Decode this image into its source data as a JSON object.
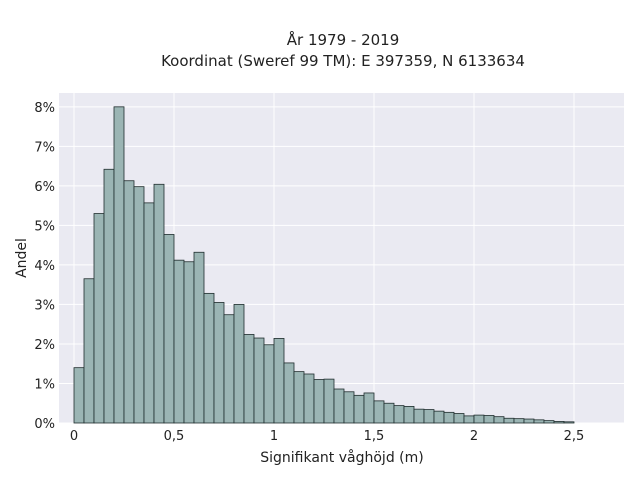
{
  "chart_data": {
    "type": "bar",
    "title": "År 1979 - 2019",
    "subtitle": "Koordinat (Sweref 99 TM): E 397359, N 6133634",
    "xlabel": "Signifikant våghöjd (m)",
    "ylabel": "Andel",
    "xlim": [
      -0.075,
      2.75
    ],
    "ylim": [
      0,
      8.35
    ],
    "x_ticks": [
      0,
      0.5,
      1,
      1.5,
      2,
      2.5
    ],
    "x_tick_labels": [
      "0",
      "0,5",
      "1",
      "1,5",
      "2",
      "2,5"
    ],
    "y_ticks": [
      0,
      1,
      2,
      3,
      4,
      5,
      6,
      7,
      8
    ],
    "y_tick_labels": [
      "0%",
      "1%",
      "2%",
      "3%",
      "4%",
      "5%",
      "6%",
      "7%",
      "8%"
    ],
    "bin_start": 0.0,
    "bin_width": 0.05,
    "values": [
      1.4,
      3.65,
      5.3,
      6.42,
      8.0,
      6.13,
      5.98,
      5.57,
      6.04,
      4.77,
      4.12,
      4.08,
      4.32,
      3.28,
      3.05,
      2.74,
      3.0,
      2.24,
      2.15,
      1.98,
      2.14,
      1.52,
      1.3,
      1.24,
      1.1,
      1.11,
      0.86,
      0.79,
      0.7,
      0.76,
      0.56,
      0.5,
      0.44,
      0.42,
      0.35,
      0.34,
      0.3,
      0.27,
      0.24,
      0.18,
      0.2,
      0.19,
      0.16,
      0.12,
      0.11,
      0.1,
      0.08,
      0.06,
      0.04,
      0.03
    ],
    "unit": "%",
    "grid": true,
    "colors": {
      "bar_fill": "#9bb5b4",
      "bar_edge": "#1f2d2d",
      "plot_background": "#eaeaf2",
      "grid": "#ffffff"
    }
  }
}
